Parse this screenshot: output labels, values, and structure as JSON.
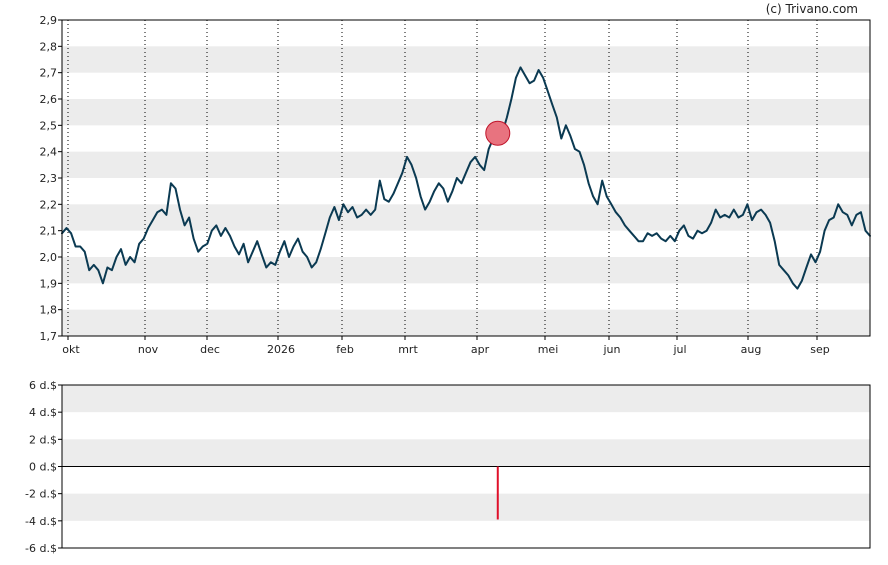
{
  "credit": "(c) Trivano.com",
  "colors": {
    "price_line": "#0b3a52",
    "marker_fill": "#e8737f",
    "marker_stroke": "#c0152b",
    "volume_bar": "#e0102a",
    "band": "#ececec",
    "frame": "#000000"
  },
  "chart_data": [
    {
      "type": "line",
      "name": "price",
      "yticks": [
        "1,7",
        "1,8",
        "1,9",
        "2,0",
        "2,1",
        "2,2",
        "2,3",
        "2,4",
        "2,5",
        "2,6",
        "2,7",
        "2,8",
        "2,9"
      ],
      "ylim": [
        1.7,
        2.9
      ],
      "x_months": [
        "okt",
        "nov",
        "dec",
        "2026",
        "feb",
        "mrt",
        "apr",
        "mei",
        "jun",
        "jul",
        "aug",
        "sep"
      ],
      "grid": "vertical dotted month lines, horizontal alternating bands",
      "series": [
        {
          "points": [
            [
              0.0,
              2.09
            ],
            [
              1.5,
              2.11
            ],
            [
              3.0,
              2.09
            ],
            [
              4.5,
              2.04
            ],
            [
              6.0,
              2.04
            ],
            [
              7.5,
              2.02
            ],
            [
              9.0,
              1.95
            ],
            [
              10.5,
              1.97
            ],
            [
              12.0,
              1.95
            ],
            [
              13.5,
              1.9
            ],
            [
              15.0,
              1.96
            ],
            [
              16.5,
              1.95
            ],
            [
              18.0,
              2.0
            ],
            [
              19.5,
              2.03
            ],
            [
              21.0,
              1.97
            ],
            [
              22.5,
              2.0
            ],
            [
              24.0,
              1.98
            ],
            [
              25.5,
              2.05
            ],
            [
              27.0,
              2.07
            ],
            [
              28.5,
              2.11
            ],
            [
              30.0,
              2.14
            ],
            [
              31.5,
              2.17
            ],
            [
              33.0,
              2.18
            ],
            [
              34.5,
              2.16
            ],
            [
              36.0,
              2.28
            ],
            [
              37.5,
              2.26
            ],
            [
              39.0,
              2.18
            ],
            [
              40.5,
              2.12
            ],
            [
              42.0,
              2.15
            ],
            [
              43.5,
              2.07
            ],
            [
              45.0,
              2.02
            ],
            [
              46.5,
              2.04
            ],
            [
              48.0,
              2.05
            ],
            [
              49.5,
              2.1
            ],
            [
              51.0,
              2.12
            ],
            [
              52.5,
              2.08
            ],
            [
              54.0,
              2.11
            ],
            [
              55.5,
              2.08
            ],
            [
              57.0,
              2.04
            ],
            [
              58.5,
              2.01
            ],
            [
              60.0,
              2.05
            ],
            [
              61.5,
              1.98
            ],
            [
              63.0,
              2.02
            ],
            [
              64.5,
              2.06
            ],
            [
              66.0,
              2.01
            ],
            [
              67.5,
              1.96
            ],
            [
              69.0,
              1.98
            ],
            [
              70.5,
              1.97
            ],
            [
              72.0,
              2.02
            ],
            [
              73.5,
              2.06
            ],
            [
              75.0,
              2.0
            ],
            [
              76.5,
              2.04
            ],
            [
              78.0,
              2.07
            ],
            [
              79.5,
              2.02
            ],
            [
              81.0,
              2.0
            ],
            [
              82.5,
              1.96
            ],
            [
              84.0,
              1.98
            ],
            [
              85.5,
              2.03
            ],
            [
              87.0,
              2.09
            ],
            [
              88.5,
              2.15
            ],
            [
              90.0,
              2.19
            ],
            [
              91.5,
              2.14
            ],
            [
              93.0,
              2.2
            ],
            [
              94.5,
              2.17
            ],
            [
              96.0,
              2.19
            ],
            [
              97.5,
              2.15
            ],
            [
              99.0,
              2.16
            ],
            [
              100.5,
              2.18
            ],
            [
              102.0,
              2.16
            ],
            [
              103.5,
              2.18
            ],
            [
              105.0,
              2.29
            ],
            [
              106.5,
              2.22
            ],
            [
              108.0,
              2.21
            ],
            [
              109.5,
              2.24
            ],
            [
              111.0,
              2.28
            ],
            [
              112.5,
              2.32
            ],
            [
              114.0,
              2.38
            ],
            [
              115.5,
              2.35
            ],
            [
              117.0,
              2.3
            ],
            [
              118.5,
              2.23
            ],
            [
              120.0,
              2.18
            ],
            [
              121.5,
              2.21
            ],
            [
              123.0,
              2.25
            ],
            [
              124.5,
              2.28
            ],
            [
              126.0,
              2.26
            ],
            [
              127.5,
              2.21
            ],
            [
              129.0,
              2.25
            ],
            [
              130.5,
              2.3
            ],
            [
              132.0,
              2.28
            ],
            [
              133.5,
              2.32
            ],
            [
              135.0,
              2.36
            ],
            [
              136.5,
              2.38
            ],
            [
              138.0,
              2.35
            ],
            [
              139.5,
              2.33
            ],
            [
              141.0,
              2.41
            ],
            [
              142.5,
              2.45
            ],
            [
              144.0,
              2.47
            ],
            [
              145.5,
              2.47
            ],
            [
              147.0,
              2.53
            ],
            [
              148.5,
              2.6
            ],
            [
              150.0,
              2.68
            ],
            [
              151.5,
              2.72
            ],
            [
              153.0,
              2.69
            ],
            [
              154.5,
              2.66
            ],
            [
              156.0,
              2.67
            ],
            [
              157.5,
              2.71
            ],
            [
              159.0,
              2.68
            ],
            [
              160.5,
              2.63
            ],
            [
              162.0,
              2.58
            ],
            [
              163.5,
              2.53
            ],
            [
              165.0,
              2.45
            ],
            [
              166.5,
              2.5
            ],
            [
              168.0,
              2.46
            ],
            [
              169.5,
              2.41
            ],
            [
              171.0,
              2.4
            ],
            [
              172.5,
              2.35
            ],
            [
              174.0,
              2.28
            ],
            [
              175.5,
              2.23
            ],
            [
              177.0,
              2.2
            ],
            [
              178.5,
              2.29
            ],
            [
              180.0,
              2.23
            ],
            [
              181.5,
              2.2
            ],
            [
              183.0,
              2.17
            ],
            [
              184.5,
              2.15
            ],
            [
              186.0,
              2.12
            ],
            [
              187.5,
              2.1
            ],
            [
              189.0,
              2.08
            ],
            [
              190.5,
              2.06
            ],
            [
              192.0,
              2.06
            ],
            [
              193.5,
              2.09
            ],
            [
              195.0,
              2.08
            ],
            [
              196.5,
              2.09
            ],
            [
              198.0,
              2.07
            ],
            [
              199.5,
              2.06
            ],
            [
              201.0,
              2.08
            ],
            [
              202.5,
              2.06
            ],
            [
              204.0,
              2.1
            ],
            [
              205.5,
              2.12
            ],
            [
              207.0,
              2.08
            ],
            [
              208.5,
              2.07
            ],
            [
              210.0,
              2.1
            ],
            [
              211.5,
              2.09
            ],
            [
              213.0,
              2.1
            ],
            [
              214.5,
              2.13
            ],
            [
              216.0,
              2.18
            ],
            [
              217.5,
              2.15
            ],
            [
              219.0,
              2.16
            ],
            [
              220.5,
              2.15
            ],
            [
              222.0,
              2.18
            ],
            [
              223.5,
              2.15
            ],
            [
              225.0,
              2.16
            ],
            [
              226.5,
              2.2
            ],
            [
              228.0,
              2.14
            ],
            [
              229.5,
              2.17
            ],
            [
              231.0,
              2.18
            ],
            [
              232.5,
              2.16
            ],
            [
              234.0,
              2.13
            ],
            [
              235.5,
              2.06
            ],
            [
              237.0,
              1.97
            ],
            [
              238.5,
              1.95
            ],
            [
              240.0,
              1.93
            ],
            [
              241.5,
              1.9
            ],
            [
              243.0,
              1.88
            ],
            [
              244.5,
              1.91
            ],
            [
              246.0,
              1.96
            ],
            [
              247.5,
              2.01
            ],
            [
              249.0,
              1.98
            ],
            [
              250.5,
              2.02
            ],
            [
              252.0,
              2.1
            ],
            [
              253.5,
              2.14
            ],
            [
              255.0,
              2.15
            ],
            [
              256.5,
              2.2
            ],
            [
              258.0,
              2.17
            ],
            [
              259.5,
              2.16
            ],
            [
              261.0,
              2.12
            ],
            [
              262.5,
              2.16
            ],
            [
              264.0,
              2.17
            ],
            [
              265.5,
              2.1
            ],
            [
              267.0,
              2.08
            ]
          ]
        }
      ],
      "marker": {
        "x": 144.0,
        "y": 2.47
      }
    },
    {
      "type": "bar",
      "name": "volume",
      "yticks": [
        "6 d.$",
        "4 d.$",
        "2 d.$",
        "0 d.$",
        "-2 d.$",
        "-4 d.$",
        "-6 d.$"
      ],
      "ylim": [
        -6,
        6
      ],
      "bars": [
        {
          "x": 144.0,
          "value": -3.9
        }
      ]
    }
  ]
}
